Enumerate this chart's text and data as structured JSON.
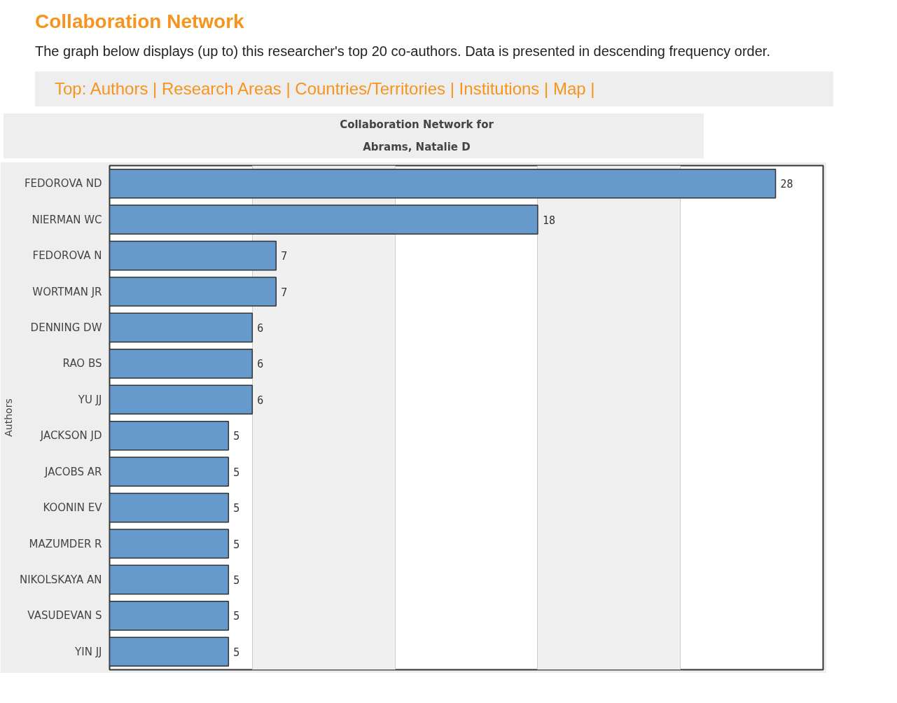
{
  "chart_data": {
    "type": "bar",
    "orientation": "horizontal",
    "title": "Collaboration Network for\nAbrams, Natalie D",
    "subtitle": "The graph below displays (up to) this researcher's top 20 co-authors. Data is presented in descending frequency order.",
    "annotations": [
      "Collaboration Network",
      "Top: Authors | Research Areas | Countries/Territories | Institutions | Map |"
    ],
    "ylabel": "Authors",
    "categories": [
      "FEDOROVA ND",
      "NIERMAN WC",
      "FEDOROVA N",
      "WORTMAN JR",
      "DENNING DW",
      "RAO BS",
      "YU JJ",
      "JACKSON JD",
      "JACOBS AR",
      "KOONIN EV",
      "MAZUMDER R",
      "NIKOLSKAYA AN",
      "VASUDEVAN S",
      "YIN JJ"
    ],
    "values": [
      28,
      18,
      7,
      7,
      6,
      6,
      6,
      5,
      5,
      5,
      5,
      5,
      5,
      5
    ],
    "color": "#6699cc",
    "xlim": [
      0,
      30
    ],
    "xticks": [
      {
        "value": 0,
        "label": null
      },
      {
        "value": 6,
        "label": null
      },
      {
        "value": 12,
        "label": null
      },
      {
        "value": 18,
        "label": null
      },
      {
        "value": 24,
        "label": null
      },
      {
        "value": 30,
        "label": null
      }
    ],
    "grid": "x",
    "tick_labels": "y",
    "data_labels": true
  }
}
